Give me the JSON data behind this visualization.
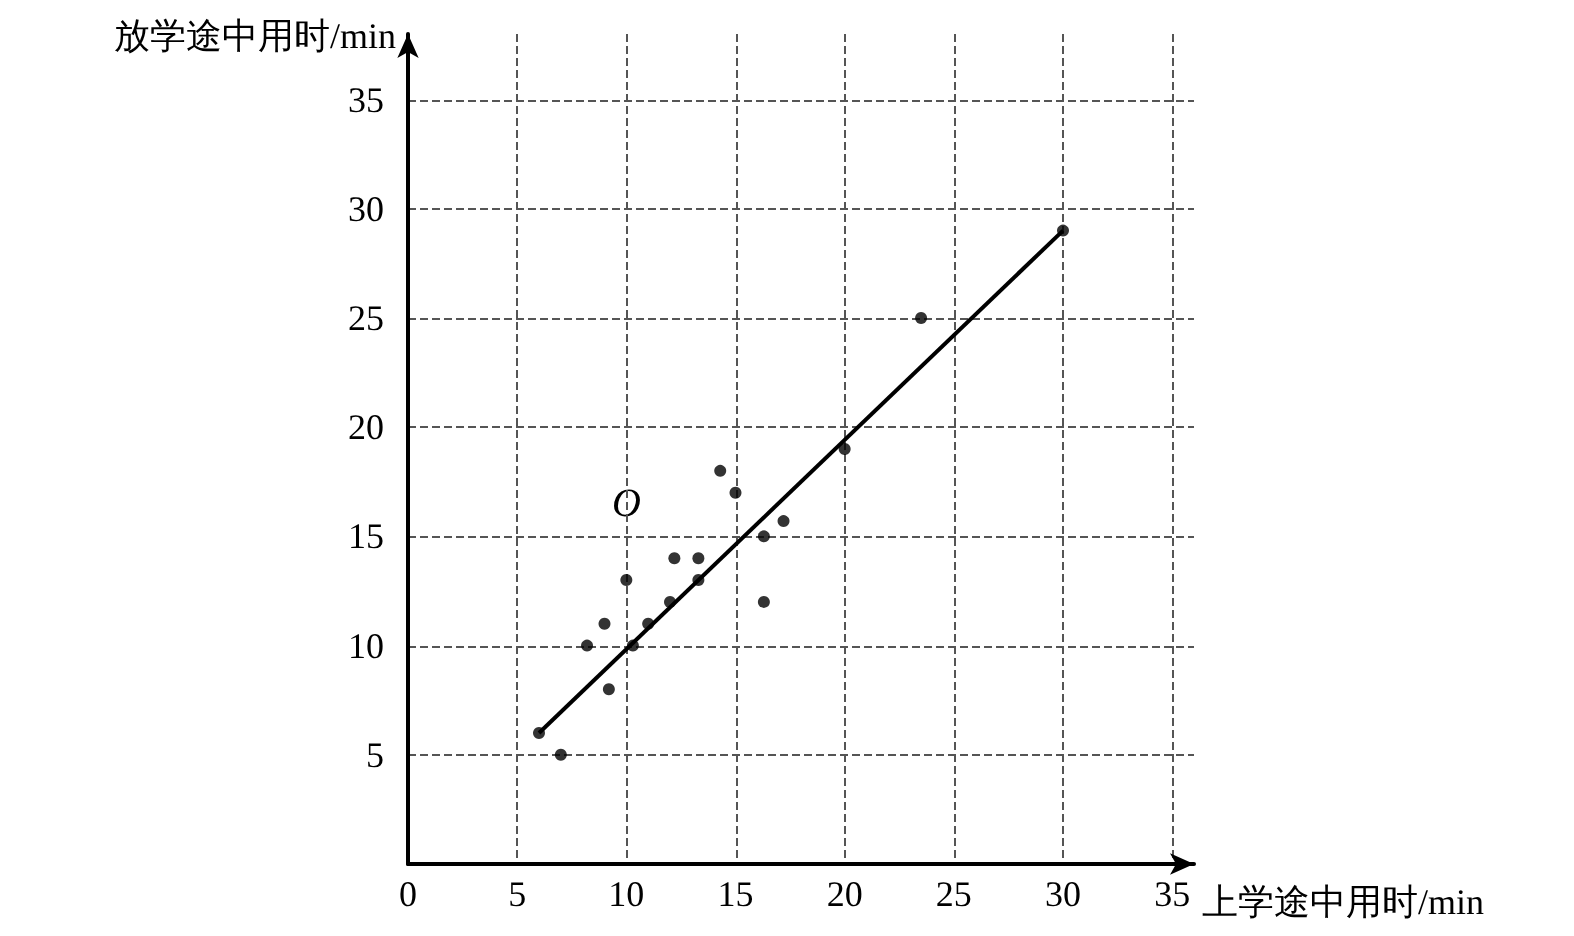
{
  "chart_data": {
    "type": "scatter",
    "xlabel": "上学途中用时/min",
    "ylabel": "放学途中用时/min",
    "x": [
      6,
      7,
      8.2,
      9,
      9.2,
      10,
      10.3,
      11,
      12,
      12.2,
      13.3,
      13.3,
      14.3,
      15,
      16.3,
      16.3,
      17.2,
      20,
      23.5,
      30
    ],
    "series": [
      {
        "color": "#000000",
        "values": [
          6,
          5,
          10,
          11,
          8,
          13,
          10,
          11,
          12,
          14,
          14,
          13,
          18,
          17,
          15,
          12,
          15.7,
          19,
          25,
          29
        ]
      },
      {
        "type": "line",
        "color": "#000000",
        "x": [
          6,
          30
        ],
        "values": [
          6,
          29
        ],
        "marker": "none",
        "line_style": "solid"
      }
    ],
    "annotations": [
      "O"
    ],
    "xlim": [
      0,
      36
    ],
    "ylim": [
      0,
      38
    ],
    "xticks": [
      0,
      5,
      10,
      15,
      20,
      25,
      30,
      35
    ],
    "yticks": [
      5,
      10,
      15,
      20,
      25,
      30,
      35
    ],
    "grid": true,
    "marker": "circle"
  }
}
